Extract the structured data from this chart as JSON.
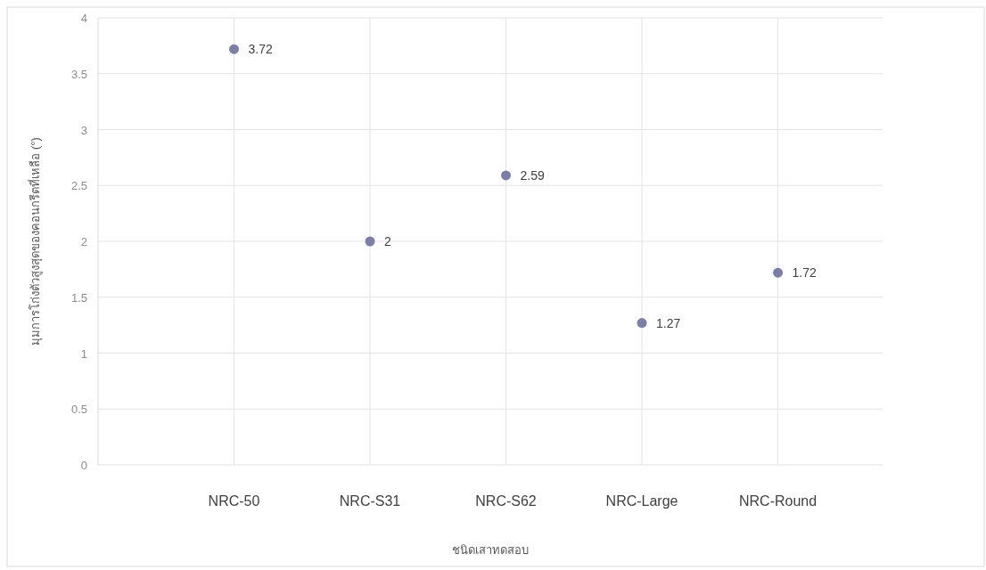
{
  "chart_data": {
    "type": "scatter",
    "xlabel": "ชนิดเสาทดสอบ",
    "ylabel": "มุมการโก่งตัวสูงสุดของคอนกรีตที่เหลือ (°)",
    "categories": [
      "NRC-50",
      "NRC-S31",
      "NRC-S62",
      "NRC-Large",
      "NRC-Round"
    ],
    "series": [
      {
        "color": "#7b7fa6",
        "values": [
          3.72,
          2,
          2.59,
          1.27,
          1.72
        ]
      }
    ],
    "ylim": [
      0,
      4
    ],
    "yticks": [
      0,
      0.5,
      1,
      1.5,
      2,
      2.5,
      3,
      3.5,
      4
    ],
    "grid": true,
    "data_labels": true,
    "marker": "circle"
  }
}
